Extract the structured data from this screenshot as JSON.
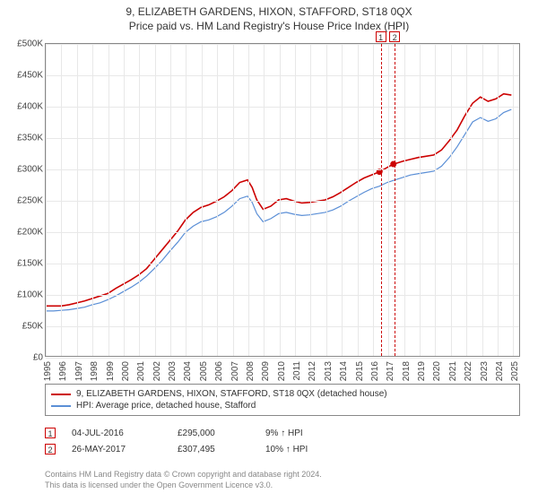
{
  "title": "9, ELIZABETH GARDENS, HIXON, STAFFORD, ST18 0QX",
  "subtitle": "Price paid vs. HM Land Registry's House Price Index (HPI)",
  "chart": {
    "type": "line",
    "background_color": "#ffffff",
    "grid_color_minor": "#e8e8e8",
    "grid_color_major": "#d0d0d0",
    "axis_color": "#888888",
    "title_fontsize": 12,
    "label_fontsize": 10,
    "y": {
      "min": 0,
      "max": 500000,
      "step": 50000,
      "format_prefix": "£",
      "labels": [
        "£0",
        "£50K",
        "£100K",
        "£150K",
        "£200K",
        "£250K",
        "£300K",
        "£350K",
        "£400K",
        "£450K",
        "£500K"
      ]
    },
    "x": {
      "min": 1995,
      "max": 2025.5,
      "ticks": [
        1995,
        1996,
        1997,
        1998,
        1999,
        2000,
        2001,
        2002,
        2003,
        2004,
        2005,
        2006,
        2007,
        2008,
        2009,
        2010,
        2011,
        2012,
        2013,
        2014,
        2015,
        2016,
        2017,
        2018,
        2019,
        2020,
        2021,
        2022,
        2023,
        2024,
        2025
      ]
    },
    "markers": [
      {
        "id": "1",
        "x": 2016.5,
        "y": 295000,
        "color": "#cc0000"
      },
      {
        "id": "2",
        "x": 2017.4,
        "y": 307495,
        "color": "#cc0000"
      }
    ],
    "series": [
      {
        "name": "9, ELIZABETH GARDENS, HIXON, STAFFORD, ST18 0QX (detached house)",
        "legend": "9, ELIZABETH GARDENS, HIXON, STAFFORD, ST18 0QX (detached house)",
        "color": "#cc0000",
        "line_width": 1.6,
        "marker_fill": "#cc0000",
        "points": [
          [
            1995.0,
            80000
          ],
          [
            1995.5,
            80000
          ],
          [
            1996.0,
            80000
          ],
          [
            1996.5,
            82000
          ],
          [
            1997.0,
            85000
          ],
          [
            1997.5,
            88000
          ],
          [
            1998.0,
            92000
          ],
          [
            1998.5,
            96000
          ],
          [
            1999.0,
            100000
          ],
          [
            1999.5,
            108000
          ],
          [
            2000.0,
            115000
          ],
          [
            2000.5,
            122000
          ],
          [
            2001.0,
            130000
          ],
          [
            2001.5,
            140000
          ],
          [
            2002.0,
            155000
          ],
          [
            2002.5,
            170000
          ],
          [
            2003.0,
            185000
          ],
          [
            2003.5,
            200000
          ],
          [
            2004.0,
            218000
          ],
          [
            2004.5,
            230000
          ],
          [
            2005.0,
            238000
          ],
          [
            2005.5,
            242000
          ],
          [
            2006.0,
            248000
          ],
          [
            2006.5,
            255000
          ],
          [
            2007.0,
            265000
          ],
          [
            2007.5,
            278000
          ],
          [
            2008.0,
            282000
          ],
          [
            2008.3,
            270000
          ],
          [
            2008.6,
            250000
          ],
          [
            2009.0,
            235000
          ],
          [
            2009.5,
            240000
          ],
          [
            2010.0,
            250000
          ],
          [
            2010.5,
            252000
          ],
          [
            2011.0,
            248000
          ],
          [
            2011.5,
            245000
          ],
          [
            2012.0,
            246000
          ],
          [
            2012.5,
            248000
          ],
          [
            2013.0,
            250000
          ],
          [
            2013.5,
            255000
          ],
          [
            2014.0,
            262000
          ],
          [
            2014.5,
            270000
          ],
          [
            2015.0,
            278000
          ],
          [
            2015.5,
            285000
          ],
          [
            2016.0,
            290000
          ],
          [
            2016.5,
            295000
          ],
          [
            2017.0,
            302000
          ],
          [
            2017.4,
            307495
          ],
          [
            2017.5,
            308000
          ],
          [
            2018.0,
            312000
          ],
          [
            2018.5,
            315000
          ],
          [
            2019.0,
            318000
          ],
          [
            2019.5,
            320000
          ],
          [
            2020.0,
            322000
          ],
          [
            2020.5,
            330000
          ],
          [
            2021.0,
            345000
          ],
          [
            2021.5,
            362000
          ],
          [
            2022.0,
            385000
          ],
          [
            2022.5,
            405000
          ],
          [
            2023.0,
            415000
          ],
          [
            2023.5,
            408000
          ],
          [
            2024.0,
            412000
          ],
          [
            2024.5,
            420000
          ],
          [
            2025.0,
            418000
          ]
        ]
      },
      {
        "name": "HPI: Average price, detached house, Stafford",
        "legend": "HPI: Average price, detached house, Stafford",
        "color": "#5b8fd6",
        "line_width": 1.2,
        "points": [
          [
            1995.0,
            72000
          ],
          [
            1995.5,
            72000
          ],
          [
            1996.0,
            73000
          ],
          [
            1996.5,
            74000
          ],
          [
            1997.0,
            76000
          ],
          [
            1997.5,
            78000
          ],
          [
            1998.0,
            82000
          ],
          [
            1998.5,
            85000
          ],
          [
            1999.0,
            90000
          ],
          [
            1999.5,
            96000
          ],
          [
            2000.0,
            103000
          ],
          [
            2000.5,
            110000
          ],
          [
            2001.0,
            118000
          ],
          [
            2001.5,
            128000
          ],
          [
            2002.0,
            140000
          ],
          [
            2002.5,
            153000
          ],
          [
            2003.0,
            168000
          ],
          [
            2003.5,
            182000
          ],
          [
            2004.0,
            198000
          ],
          [
            2004.5,
            208000
          ],
          [
            2005.0,
            215000
          ],
          [
            2005.5,
            218000
          ],
          [
            2006.0,
            223000
          ],
          [
            2006.5,
            230000
          ],
          [
            2007.0,
            240000
          ],
          [
            2007.5,
            252000
          ],
          [
            2008.0,
            256000
          ],
          [
            2008.3,
            246000
          ],
          [
            2008.6,
            228000
          ],
          [
            2009.0,
            215000
          ],
          [
            2009.5,
            220000
          ],
          [
            2010.0,
            228000
          ],
          [
            2010.5,
            230000
          ],
          [
            2011.0,
            227000
          ],
          [
            2011.5,
            225000
          ],
          [
            2012.0,
            226000
          ],
          [
            2012.5,
            228000
          ],
          [
            2013.0,
            230000
          ],
          [
            2013.5,
            234000
          ],
          [
            2014.0,
            240000
          ],
          [
            2014.5,
            248000
          ],
          [
            2015.0,
            255000
          ],
          [
            2015.5,
            262000
          ],
          [
            2016.0,
            268000
          ],
          [
            2016.5,
            272000
          ],
          [
            2017.0,
            278000
          ],
          [
            2017.5,
            282000
          ],
          [
            2018.0,
            286000
          ],
          [
            2018.5,
            290000
          ],
          [
            2019.0,
            292000
          ],
          [
            2019.5,
            294000
          ],
          [
            2020.0,
            296000
          ],
          [
            2020.5,
            304000
          ],
          [
            2021.0,
            318000
          ],
          [
            2021.5,
            335000
          ],
          [
            2022.0,
            355000
          ],
          [
            2022.5,
            375000
          ],
          [
            2023.0,
            382000
          ],
          [
            2023.5,
            376000
          ],
          [
            2024.0,
            380000
          ],
          [
            2024.5,
            390000
          ],
          [
            2025.0,
            395000
          ]
        ]
      }
    ]
  },
  "transactions": [
    {
      "id": "1",
      "date": "04-JUL-2016",
      "price": "£295,000",
      "delta": "9% ↑ HPI"
    },
    {
      "id": "2",
      "date": "26-MAY-2017",
      "price": "£307,495",
      "delta": "10% ↑ HPI"
    }
  ],
  "footer": {
    "line1": "Contains HM Land Registry data © Crown copyright and database right 2024.",
    "line2": "This data is licensed under the Open Government Licence v3.0."
  }
}
